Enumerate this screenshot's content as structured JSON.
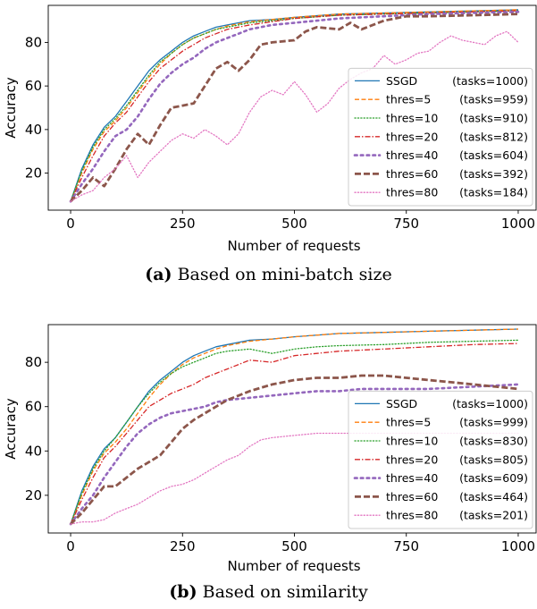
{
  "chart_data": [
    {
      "type": "line",
      "caption_label": "(a)",
      "caption_text": "Based on mini-batch size",
      "xlabel": "Number of requests",
      "ylabel": "Accuracy",
      "xlim": [
        -50,
        1040
      ],
      "ylim": [
        3,
        97
      ],
      "xticks": [
        0,
        250,
        500,
        750,
        1000
      ],
      "yticks": [
        20,
        40,
        60,
        80
      ],
      "grid": false,
      "legend_position": "lower-right",
      "series": [
        {
          "name": "SSGD",
          "tasks": "(tasks=1000)",
          "color": "#1f77b4",
          "dash": "solid",
          "width": 1.3,
          "x": [
            0,
            25,
            50,
            75,
            100,
            125,
            150,
            175,
            200,
            225,
            250,
            275,
            300,
            325,
            350,
            400,
            450,
            500,
            600,
            700,
            800,
            900,
            1000
          ],
          "y": [
            7,
            22,
            33,
            41,
            46,
            53,
            60,
            67,
            72,
            76,
            80,
            83,
            85,
            87,
            88,
            90,
            90.5,
            91.5,
            93,
            93.5,
            94,
            94.5,
            95
          ]
        },
        {
          "name": "thres=5",
          "tasks": "(tasks=959)",
          "color": "#ff7f0e",
          "dash": "dashed",
          "width": 1.3,
          "x": [
            0,
            25,
            50,
            75,
            100,
            125,
            150,
            175,
            200,
            225,
            250,
            275,
            300,
            325,
            350,
            400,
            450,
            500,
            600,
            700,
            800,
            900,
            1000
          ],
          "y": [
            7,
            20,
            31,
            39,
            44,
            50,
            57,
            64,
            70,
            75,
            79,
            82,
            84,
            86,
            87.5,
            89.5,
            90.5,
            91.5,
            93,
            93.5,
            94,
            94.5,
            95
          ]
        },
        {
          "name": "thres=10",
          "tasks": "(tasks=910)",
          "color": "#2ca02c",
          "dash": "dotted",
          "width": 1.3,
          "x": [
            0,
            25,
            50,
            75,
            100,
            125,
            150,
            175,
            200,
            225,
            250,
            275,
            300,
            325,
            350,
            400,
            450,
            500,
            600,
            700,
            800,
            900,
            1000
          ],
          "y": [
            7,
            21,
            32,
            40,
            45,
            51,
            58,
            65,
            71,
            75,
            79,
            82,
            84,
            86,
            87,
            89,
            90,
            91,
            92.5,
            93,
            93.5,
            94,
            94.5
          ]
        },
        {
          "name": "thres=20",
          "tasks": "(tasks=812)",
          "color": "#d62728",
          "dash": "dashdot",
          "width": 1.3,
          "x": [
            0,
            25,
            50,
            75,
            100,
            125,
            150,
            175,
            200,
            225,
            250,
            275,
            300,
            325,
            350,
            400,
            450,
            500,
            600,
            700,
            800,
            900,
            1000
          ],
          "y": [
            7,
            18,
            28,
            37,
            43,
            48,
            55,
            62,
            68,
            72,
            76,
            79,
            82,
            84,
            86,
            88,
            89.5,
            91,
            92.5,
            93,
            93.5,
            94,
            94.5
          ]
        },
        {
          "name": "thres=40",
          "tasks": "(tasks=604)",
          "color": "#9467bd",
          "dash": "dotted-thick",
          "width": 2.6,
          "x": [
            0,
            25,
            50,
            75,
            100,
            125,
            150,
            175,
            200,
            225,
            250,
            275,
            300,
            325,
            350,
            375,
            400,
            450,
            500,
            550,
            600,
            700,
            800,
            900,
            1000
          ],
          "y": [
            7,
            15,
            22,
            30,
            37,
            40,
            46,
            54,
            61,
            66,
            70,
            73,
            77,
            80,
            82,
            84,
            86,
            88,
            89,
            90,
            91,
            92,
            93,
            93.5,
            94
          ]
        },
        {
          "name": "thres=60",
          "tasks": "(tasks=392)",
          "color": "#8c564b",
          "dash": "dashed-thick",
          "width": 2.8,
          "x": [
            0,
            25,
            50,
            75,
            100,
            125,
            150,
            175,
            200,
            225,
            250,
            275,
            300,
            325,
            350,
            375,
            400,
            425,
            450,
            500,
            525,
            550,
            600,
            625,
            650,
            700,
            750,
            800,
            900,
            1000
          ],
          "y": [
            7,
            12,
            18,
            14,
            22,
            31,
            38,
            33,
            42,
            50,
            51,
            52,
            60,
            68,
            71,
            67,
            72,
            79,
            80,
            81,
            85,
            87,
            86,
            89,
            86,
            90,
            92,
            92,
            92.5,
            93
          ]
        },
        {
          "name": "thres=80",
          "tasks": "(tasks=184)",
          "color": "#e377c2",
          "dash": "dotted",
          "width": 1.3,
          "x": [
            0,
            25,
            50,
            75,
            100,
            125,
            150,
            175,
            200,
            225,
            250,
            275,
            300,
            325,
            350,
            375,
            400,
            425,
            450,
            475,
            500,
            525,
            550,
            575,
            600,
            625,
            650,
            675,
            700,
            725,
            750,
            775,
            800,
            825,
            850,
            875,
            900,
            925,
            950,
            975,
            1000
          ],
          "y": [
            7,
            10,
            12,
            18,
            22,
            28,
            18,
            25,
            30,
            35,
            38,
            36,
            40,
            37,
            33,
            38,
            48,
            55,
            58,
            56,
            62,
            56,
            48,
            52,
            59,
            63,
            66,
            68,
            74,
            70,
            72,
            75,
            76,
            80,
            83,
            81,
            80,
            79,
            83,
            85,
            80
          ]
        }
      ]
    },
    {
      "type": "line",
      "caption_label": "(b)",
      "caption_text": "Based on similarity",
      "xlabel": "Number of requests",
      "ylabel": "Accuracy",
      "xlim": [
        -50,
        1040
      ],
      "ylim": [
        3,
        97
      ],
      "xticks": [
        0,
        250,
        500,
        750,
        1000
      ],
      "yticks": [
        20,
        40,
        60,
        80
      ],
      "grid": false,
      "legend_position": "lower-right",
      "series": [
        {
          "name": "SSGD",
          "tasks": "(tasks=1000)",
          "color": "#1f77b4",
          "dash": "solid",
          "width": 1.3,
          "x": [
            0,
            25,
            50,
            75,
            100,
            125,
            150,
            175,
            200,
            225,
            250,
            275,
            300,
            325,
            350,
            400,
            450,
            500,
            600,
            700,
            800,
            900,
            1000
          ],
          "y": [
            7,
            22,
            33,
            41,
            46,
            53,
            60,
            67,
            72,
            76,
            80,
            83,
            85,
            87,
            88,
            90,
            90.5,
            91.5,
            93,
            93.5,
            94,
            94.5,
            95
          ]
        },
        {
          "name": "thres=5",
          "tasks": "(tasks=999)",
          "color": "#ff7f0e",
          "dash": "dashed",
          "width": 1.3,
          "x": [
            0,
            25,
            50,
            75,
            100,
            125,
            150,
            175,
            200,
            225,
            250,
            275,
            300,
            325,
            350,
            400,
            450,
            500,
            600,
            700,
            800,
            900,
            1000
          ],
          "y": [
            7,
            20,
            31,
            39,
            44,
            50,
            57,
            64,
            70,
            75,
            79,
            82,
            84,
            86,
            87.5,
            89.5,
            90.5,
            91.5,
            93,
            93.5,
            94,
            94.5,
            95
          ]
        },
        {
          "name": "thres=10",
          "tasks": "(tasks=830)",
          "color": "#2ca02c",
          "dash": "dotted",
          "width": 1.3,
          "x": [
            0,
            25,
            50,
            75,
            100,
            125,
            150,
            175,
            200,
            225,
            250,
            275,
            300,
            325,
            350,
            400,
            450,
            500,
            550,
            600,
            700,
            800,
            900,
            1000
          ],
          "y": [
            7,
            21,
            32,
            40,
            46,
            53,
            60,
            66,
            71,
            75,
            78,
            80,
            82,
            84,
            85,
            86,
            84,
            86,
            87,
            87.5,
            88,
            89,
            89.5,
            90
          ]
        },
        {
          "name": "thres=20",
          "tasks": "(tasks=805)",
          "color": "#d62728",
          "dash": "dashdot",
          "width": 1.3,
          "x": [
            0,
            25,
            50,
            75,
            100,
            125,
            150,
            175,
            200,
            225,
            250,
            275,
            300,
            325,
            350,
            400,
            450,
            500,
            550,
            600,
            700,
            800,
            900,
            1000
          ],
          "y": [
            7,
            18,
            28,
            37,
            42,
            48,
            54,
            60,
            63,
            66,
            68,
            70,
            73,
            75,
            77,
            81,
            80,
            83,
            84,
            85,
            86,
            87,
            88,
            88.5
          ]
        },
        {
          "name": "thres=40",
          "tasks": "(tasks=609)",
          "color": "#9467bd",
          "dash": "dotted-thick",
          "width": 2.6,
          "x": [
            0,
            25,
            50,
            75,
            100,
            125,
            150,
            175,
            200,
            225,
            250,
            275,
            300,
            325,
            350,
            400,
            450,
            500,
            550,
            600,
            650,
            700,
            800,
            900,
            1000
          ],
          "y": [
            7,
            14,
            20,
            28,
            35,
            42,
            48,
            52,
            55,
            57,
            58,
            59,
            60,
            62,
            63,
            64,
            65,
            66,
            67,
            67,
            68,
            68,
            68,
            69,
            70
          ]
        },
        {
          "name": "thres=60",
          "tasks": "(tasks=464)",
          "color": "#8c564b",
          "dash": "dashed-thick",
          "width": 2.8,
          "x": [
            0,
            25,
            50,
            75,
            100,
            125,
            150,
            175,
            200,
            225,
            250,
            275,
            300,
            325,
            350,
            400,
            450,
            500,
            550,
            600,
            650,
            700,
            750,
            800,
            850,
            900,
            950,
            1000
          ],
          "y": [
            7,
            12,
            18,
            24,
            24,
            28,
            32,
            35,
            38,
            44,
            50,
            54,
            57,
            60,
            63,
            67,
            70,
            72,
            73,
            73,
            74,
            74,
            73,
            72,
            71,
            70,
            69,
            68
          ]
        },
        {
          "name": "thres=80",
          "tasks": "(tasks=201)",
          "color": "#e377c2",
          "dash": "dotted",
          "width": 1.3,
          "x": [
            0,
            25,
            50,
            75,
            100,
            125,
            150,
            175,
            200,
            225,
            250,
            275,
            300,
            325,
            350,
            375,
            400,
            425,
            450,
            500,
            550,
            600,
            650,
            700,
            750,
            800,
            850,
            900,
            950,
            1000
          ],
          "y": [
            7,
            8,
            8,
            9,
            12,
            14,
            16,
            19,
            22,
            24,
            25,
            27,
            30,
            33,
            36,
            38,
            42,
            45,
            46,
            47,
            48,
            48,
            48,
            48,
            48,
            48,
            48,
            48,
            48,
            48
          ]
        }
      ]
    }
  ]
}
